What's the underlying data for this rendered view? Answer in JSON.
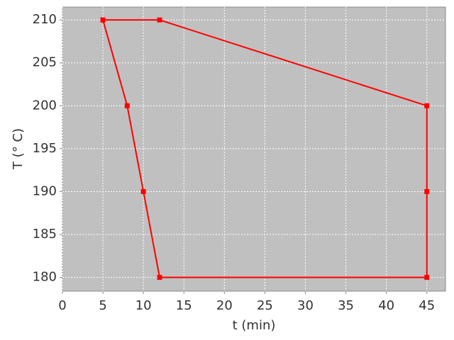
{
  "chart_data": {
    "type": "line",
    "xlabel": "t (min)",
    "ylabel": "T (° C)",
    "x": [
      5,
      12,
      45,
      45,
      45,
      12,
      10,
      8,
      5
    ],
    "series": [
      {
        "color": "#ff0000",
        "values": [
          210,
          210,
          200,
          190,
          180,
          180,
          190,
          200,
          210
        ]
      }
    ],
    "xlim": [
      0,
      47.3
    ],
    "ylim": [
      178.4,
      211.5
    ],
    "xticks": [
      0,
      5,
      10,
      15,
      20,
      25,
      30,
      35,
      40,
      45
    ],
    "yticks": [
      180,
      185,
      190,
      195,
      200,
      205,
      210
    ],
    "grid": true,
    "background": "#c0c0c0"
  }
}
